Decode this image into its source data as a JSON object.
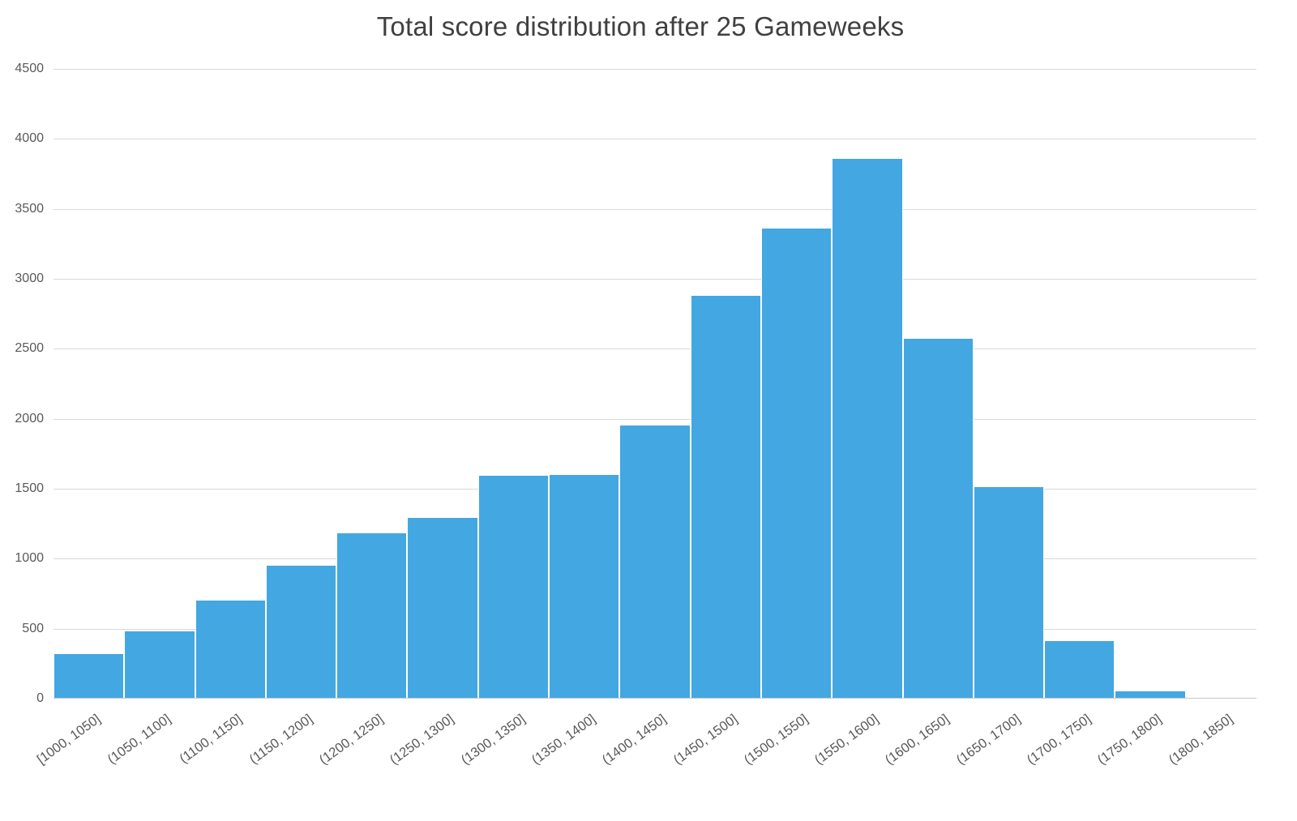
{
  "chart_data": {
    "type": "bar",
    "subtype": "histogram",
    "title": "Total score distribution after 25 Gameweeks",
    "categories": [
      "[1000, 1050]",
      "(1050, 1100]",
      "(1100, 1150]",
      "(1150, 1200]",
      "(1200, 1250]",
      "(1250, 1300]",
      "(1300, 1350]",
      "(1350, 1400]",
      "(1400, 1450]",
      "(1450, 1500]",
      "(1500, 1550]",
      "(1550, 1600]",
      "(1600, 1650]",
      "(1650, 1700]",
      "(1700, 1750]",
      "(1750, 1800]",
      "(1800, 1850]"
    ],
    "values": [
      320,
      480,
      700,
      950,
      1180,
      1290,
      1590,
      1600,
      1950,
      2880,
      3360,
      3855,
      2570,
      1510,
      410,
      50,
      0
    ],
    "xlabel": "",
    "ylabel": "",
    "ylim": [
      0,
      4500
    ],
    "yticks": [
      0,
      500,
      1000,
      1500,
      2000,
      2500,
      3000,
      3500,
      4000,
      4500
    ],
    "grid": true,
    "legend_position": "none",
    "bar_color": "#43A7E2",
    "gridline_color": "#d9d9d9",
    "axis_line_color": "#c6c6c6",
    "tick_label_color": "#595959",
    "title_color": "#404040"
  }
}
